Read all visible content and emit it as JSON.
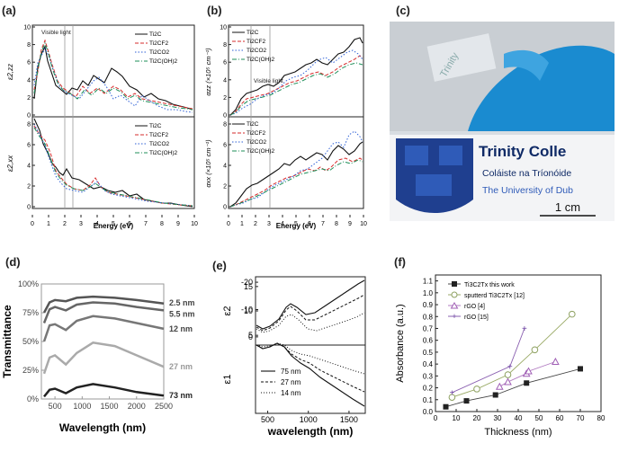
{
  "figure": {
    "panel_labels": [
      "(a)",
      "(b)",
      "(c)",
      "(d)",
      "(e)",
      "(f)"
    ]
  },
  "legend_compounds": [
    "Ti2C",
    "Ti2CF2",
    "Ti2CO2",
    "Ti2C(OH)2"
  ],
  "colors": {
    "black": "#111111",
    "red": "#d62b2b",
    "blue": "#2c5fd6",
    "green": "#1f8f5a"
  },
  "panel_a": {
    "visible_light": "Visible light",
    "xlabel": "Energy (eV)",
    "ylabel_top": "ε2,zz",
    "ylabel_bottom": "ε2,xx",
    "xticks": [
      "0",
      "1",
      "2",
      "3",
      "4",
      "5",
      "6",
      "7",
      "8",
      "9",
      "10"
    ],
    "yticks_top": [
      "0",
      "2",
      "4",
      "6",
      "8",
      "10"
    ],
    "yticks_bottom": [
      "0",
      "2",
      "4",
      "6",
      "8"
    ]
  },
  "panel_b": {
    "visible_light": "Visible light",
    "xlabel": "Energy (eV)",
    "ylabel_top": "αzz (×10⁵ cm⁻¹)",
    "ylabel_bottom": "αxx (×10⁵ cm⁻¹)",
    "xticks": [
      "0",
      "1",
      "2",
      "3",
      "4",
      "5",
      "6",
      "7",
      "8",
      "9",
      "10"
    ],
    "yticks_top": [
      "0",
      "2",
      "4",
      "6",
      "8",
      "10"
    ],
    "yticks_bottom": [
      "0",
      "2",
      "4",
      "6",
      "8"
    ]
  },
  "panel_c": {
    "sign_line1": "Trinity Colle",
    "sign_line2": "Coláiste na Tríonóide",
    "sign_line3": "The University of Dub",
    "scale_bar": "1 cm",
    "watermark": "Trinity"
  },
  "panel_d": {
    "ylabel": "Transmittance",
    "xlabel": "Wavelength (nm)",
    "yticks": [
      "0%",
      "25%",
      "50%",
      "75%",
      "100%"
    ],
    "xticks": [
      "500",
      "1000",
      "1500",
      "2000",
      "2500"
    ],
    "thickness_labels": [
      "2.5 nm",
      "5.5 nm",
      "12 nm",
      "27 nm",
      "73 nm"
    ]
  },
  "panel_e": {
    "ylabel_top": "ε2",
    "ylabel_bottom": "ε1",
    "xlabel": "wavelength (nm)",
    "xticks": [
      "500",
      "1000",
      "1500"
    ],
    "yticks_top": [
      "5",
      "10",
      "15"
    ],
    "yticks_bottom": [
      "0",
      "-10",
      "-20"
    ],
    "legend": [
      "75 nm",
      "27 nm",
      "14 nm"
    ]
  },
  "panel_f": {
    "ylabel": "Absorbance (a.u.)",
    "xlabel": "Thickness (nm)",
    "yticks": [
      "0.0",
      "0.1",
      "0.2",
      "0.3",
      "0.4",
      "0.5",
      "0.6",
      "0.7",
      "0.8",
      "0.9",
      "1.0",
      "1.1"
    ],
    "xticks": [
      "0",
      "10",
      "20",
      "30",
      "40",
      "50",
      "60",
      "70",
      "80"
    ],
    "legend": [
      "Ti3C2Tx this work",
      "sputterd Ti3C2Tx [12]",
      "rGO [4]",
      "rGO [15]"
    ]
  },
  "chart_data": [
    {
      "type": "line",
      "panel": "d",
      "xlabel": "Wavelength (nm)",
      "ylabel": "Transmittance",
      "xlim": [
        250,
        2500
      ],
      "ylim": [
        0,
        100
      ],
      "x": [
        300,
        400,
        500,
        700,
        900,
        1200,
        1600,
        2000,
        2500
      ],
      "series": [
        {
          "name": "2.5 nm",
          "values": [
            75,
            84,
            86,
            85,
            88,
            89,
            88,
            86,
            83
          ]
        },
        {
          "name": "5.5 nm",
          "values": [
            66,
            78,
            80,
            77,
            82,
            84,
            83,
            80,
            77
          ]
        },
        {
          "name": "12 nm",
          "values": [
            50,
            64,
            65,
            60,
            68,
            72,
            70,
            66,
            61
          ]
        },
        {
          "name": "27 nm",
          "values": [
            22,
            36,
            38,
            30,
            40,
            49,
            46,
            38,
            28
          ]
        },
        {
          "name": "73 nm",
          "values": [
            2,
            8,
            9,
            5,
            10,
            13,
            10,
            6,
            3
          ]
        }
      ]
    },
    {
      "type": "scatter",
      "panel": "f",
      "xlabel": "Thickness (nm)",
      "ylabel": "Absorbance (a.u.)",
      "xlim": [
        0,
        80
      ],
      "ylim": [
        0,
        1.15
      ],
      "series": [
        {
          "name": "Ti3C2Tx this work",
          "x": [
            5,
            15,
            29,
            44,
            70
          ],
          "y": [
            0.04,
            0.09,
            0.14,
            0.24,
            0.36
          ]
        },
        {
          "name": "sputterd Ti3C2Tx [12]",
          "x": [
            8,
            20,
            35,
            48,
            66
          ],
          "y": [
            0.12,
            0.19,
            0.31,
            0.52,
            0.82
          ]
        },
        {
          "name": "rGO [4]",
          "x": [
            31,
            35,
            44,
            45,
            58
          ],
          "y": [
            0.21,
            0.25,
            0.32,
            0.34,
            0.42
          ]
        },
        {
          "name": "rGO [15]",
          "x": [
            8,
            36,
            43
          ],
          "y": [
            0.16,
            0.38,
            0.7
          ]
        }
      ]
    }
  ]
}
